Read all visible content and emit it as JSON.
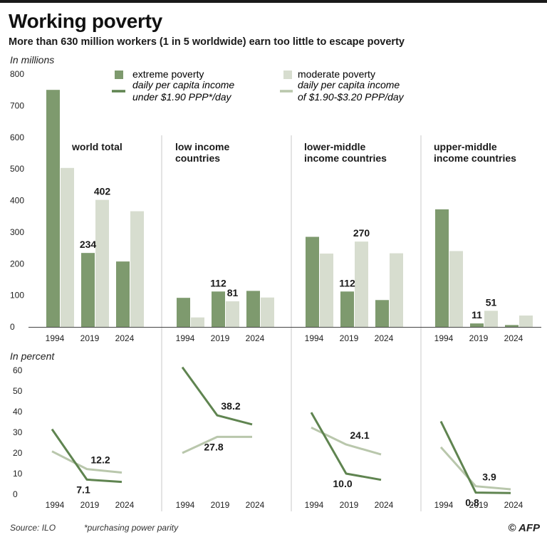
{
  "header": {
    "title": "Working poverty",
    "subtitle": "More than 630 million workers (1 in 5 worldwide) earn too little to escape poverty"
  },
  "legend": {
    "extreme_label": "extreme poverty",
    "extreme_desc_1": "daily per capita income",
    "extreme_desc_2": "under $1.90 PPP*/day",
    "moderate_label": "moderate poverty",
    "moderate_desc_1": "daily per capita income",
    "moderate_desc_2": "of $1.90-$3.20 PPP/day"
  },
  "colors": {
    "extreme": "#7e9a6e",
    "moderate": "#d7ddcf",
    "extreme_line": "#5f8450",
    "moderate_line": "#b9c7ac"
  },
  "footer": {
    "source": "Source: ILO",
    "note": "*purchasing power parity",
    "credit": "© AFP"
  },
  "chart_data": [
    {
      "type": "bar",
      "title": "In millions",
      "categories": [
        "1994",
        "2019",
        "2024"
      ],
      "ylim": [
        0,
        800
      ],
      "yticks": [
        0,
        100,
        200,
        300,
        400,
        500,
        600,
        700,
        800
      ],
      "groups": [
        {
          "name": "world total",
          "extreme": [
            750,
            234,
            207
          ],
          "moderate": [
            503,
            402,
            366
          ],
          "labels": {
            "extreme_2019": "234",
            "moderate_2019": "402"
          }
        },
        {
          "name": "low income countries",
          "name_lines": [
            "low income",
            "countries"
          ],
          "extreme": [
            92,
            112,
            114
          ],
          "moderate": [
            30,
            81,
            93
          ],
          "labels": {
            "extreme_2019": "112",
            "moderate_2019": "81"
          }
        },
        {
          "name": "lower-middle income countries",
          "name_lines": [
            "lower-middle",
            "income countries"
          ],
          "extreme": [
            285,
            112,
            85
          ],
          "moderate": [
            232,
            270,
            233
          ],
          "labels": {
            "extreme_2019": "112",
            "moderate_2019": "270"
          }
        },
        {
          "name": "upper-middle income countries",
          "name_lines": [
            "upper-middle",
            "income countries"
          ],
          "extreme": [
            372,
            11,
            6
          ],
          "moderate": [
            240,
            51,
            36
          ],
          "labels": {
            "extreme_2019": "11",
            "moderate_2019": "51"
          }
        }
      ]
    },
    {
      "type": "line",
      "title": "In percent",
      "categories": [
        "1994",
        "2019",
        "2024"
      ],
      "ylim": [
        0,
        60
      ],
      "yticks": [
        0,
        10,
        20,
        30,
        40,
        50,
        60
      ],
      "groups": [
        {
          "name": "world total",
          "extreme": [
            31.5,
            7.1,
            6.0
          ],
          "moderate": [
            20.8,
            12.2,
            10.5
          ],
          "labels": {
            "extreme_2019": "7.1",
            "moderate_2019": "12.2"
          }
        },
        {
          "name": "low income countries",
          "extreme": [
            61.5,
            38.2,
            33.8
          ],
          "moderate": [
            20.0,
            27.8,
            27.8
          ],
          "labels": {
            "extreme_2019": "38.2",
            "moderate_2019": "27.8"
          }
        },
        {
          "name": "lower-middle income countries",
          "extreme": [
            39.6,
            10.0,
            7.0
          ],
          "moderate": [
            32.3,
            24.1,
            19.3
          ],
          "labels": {
            "extreme_2019": "10.0",
            "moderate_2019": "24.1"
          }
        },
        {
          "name": "upper-middle income countries",
          "extreme": [
            35.3,
            0.8,
            0.6
          ],
          "moderate": [
            22.8,
            3.9,
            2.4
          ],
          "labels": {
            "extreme_2019": "0.8",
            "moderate_2019": "3.9"
          }
        }
      ]
    }
  ]
}
